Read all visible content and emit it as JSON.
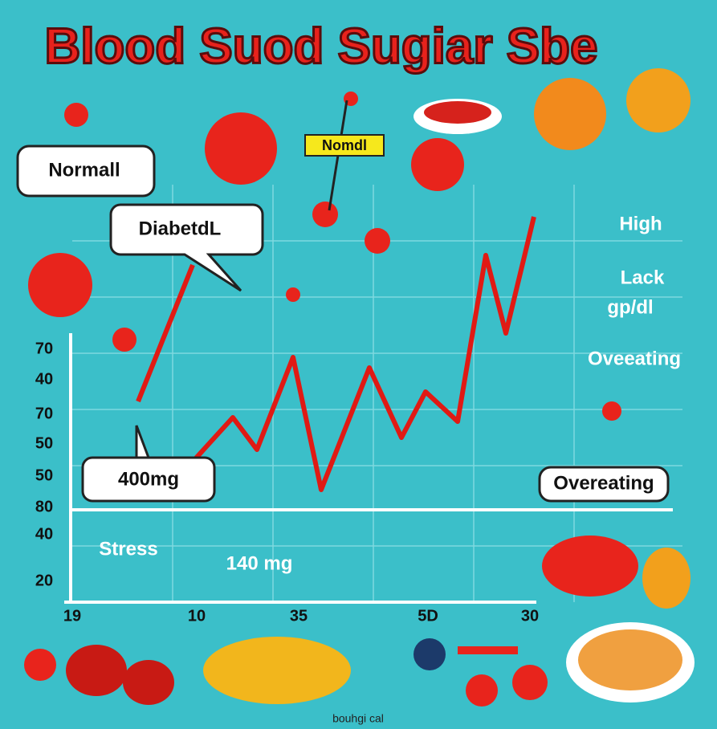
{
  "title": "Blood Suod Sugiar Sbe",
  "callouts": {
    "normal": "Normall",
    "diabetic": "DiabetdL",
    "tag": "Nomdl",
    "dose": "400mg",
    "overeating_box": "Overeating"
  },
  "side_labels": {
    "high": "High",
    "lack": "Lack",
    "unit": "gp/dl",
    "overeating": "Oveeating",
    "stress": "Stress",
    "mg": "140 mg"
  },
  "y_axis_labels": [
    "70",
    "40",
    "70",
    "50",
    "50",
    "80",
    "40",
    "20"
  ],
  "x_axis_labels": [
    "19",
    "10",
    "35",
    "5D",
    "30"
  ],
  "footer": "bouhgi cal"
}
